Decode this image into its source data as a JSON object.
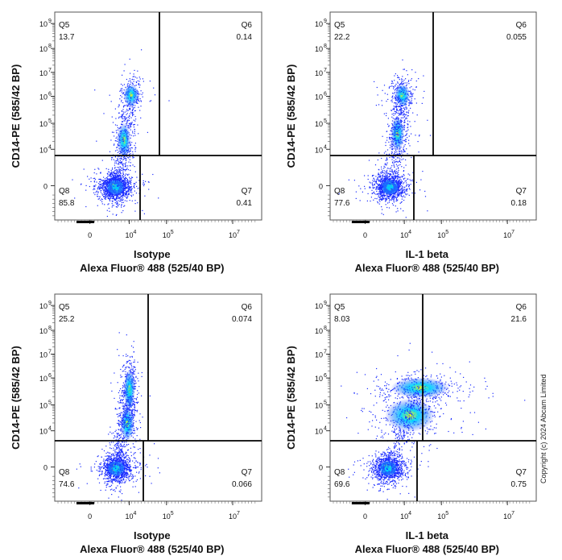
{
  "copyright": "Copyright (c) 2024 Abcam Limited",
  "colors": {
    "density_low": "#1a2cff",
    "density_mid": "#00d8ff",
    "density_high": "#ffee00",
    "density_peak": "#ff2000",
    "gate": "#000000"
  },
  "chart_data": [
    {
      "type": "scatter",
      "panel": "isotype-control",
      "xlabel_line1": "Isotype",
      "xlabel_line2": "Alexa Fluor® 488  (525/40 BP)",
      "ylabel": "CD14-PE (585/42 BP)",
      "x_scale": "biexponential",
      "y_scale": "biexponential",
      "x_ticks": [
        "0",
        "10",
        "10",
        "10"
      ],
      "x_tick_exponents": [
        "",
        "4",
        "5",
        "7"
      ],
      "y_ticks": [
        "0",
        "10",
        "10",
        "10",
        "10",
        "10",
        "10"
      ],
      "y_tick_exponents": [
        "",
        "4",
        "5",
        "6",
        "7",
        "8",
        "9"
      ],
      "quadrants": [
        {
          "name": "Q5",
          "value": "13.7"
        },
        {
          "name": "Q6",
          "value": "0.14"
        },
        {
          "name": "Q8",
          "value": "85.8"
        },
        {
          "name": "Q7",
          "value": "0.41"
        }
      ],
      "populations": [
        {
          "x": 8500,
          "y": 0,
          "share": 0.85
        },
        {
          "x": 17000,
          "y": 35000,
          "share": 0.09
        },
        {
          "x": 30000,
          "y": 1500000,
          "share": 0.06
        }
      ]
    },
    {
      "type": "scatter",
      "panel": "il1beta-stained",
      "xlabel_line1": "IL-1 beta",
      "xlabel_line2": "Alexa Fluor® 488  (525/40 BP)",
      "ylabel": "CD14-PE (585/42 BP)",
      "x_scale": "biexponential",
      "y_scale": "biexponential",
      "x_ticks": [
        "0",
        "10",
        "10",
        "10"
      ],
      "x_tick_exponents": [
        "",
        "4",
        "5",
        "7"
      ],
      "y_ticks": [
        "0",
        "10",
        "10",
        "10",
        "10",
        "10",
        "10"
      ],
      "y_tick_exponents": [
        "",
        "4",
        "5",
        "6",
        "7",
        "8",
        "9"
      ],
      "quadrants": [
        {
          "name": "Q5",
          "value": "22.2"
        },
        {
          "name": "Q6",
          "value": "0.055"
        },
        {
          "name": "Q8",
          "value": "77.6"
        },
        {
          "name": "Q7",
          "value": "0.18"
        }
      ],
      "populations": [
        {
          "x": 8000,
          "y": 0,
          "share": 0.77
        },
        {
          "x": 15000,
          "y": 60000,
          "share": 0.12
        },
        {
          "x": 22000,
          "y": 1500000,
          "share": 0.11
        }
      ]
    },
    {
      "type": "scatter",
      "panel": "isotype-control-2",
      "xlabel_line1": "Isotype",
      "xlabel_line2": "Alexa Fluor® 488  (525/40 BP)",
      "ylabel": "CD14-PE (585/42 BP)",
      "x_scale": "biexponential",
      "y_scale": "biexponential",
      "x_ticks": [
        "0",
        "10",
        "10",
        "10"
      ],
      "x_tick_exponents": [
        "",
        "4",
        "5",
        "7"
      ],
      "y_ticks": [
        "0",
        "10",
        "10",
        "10",
        "10",
        "10",
        "10"
      ],
      "y_tick_exponents": [
        "",
        "4",
        "5",
        "6",
        "7",
        "8",
        "9"
      ],
      "quadrants": [
        {
          "name": "Q5",
          "value": "25.2"
        },
        {
          "name": "Q6",
          "value": "0.074"
        },
        {
          "name": "Q8",
          "value": "74.6"
        },
        {
          "name": "Q7",
          "value": "0.066"
        }
      ],
      "populations": [
        {
          "x": 9000,
          "y": 0,
          "share": 0.74
        },
        {
          "x": 22000,
          "y": 30000,
          "share": 0.08
        },
        {
          "x": 26000,
          "y": 500000,
          "share": 0.18
        }
      ]
    },
    {
      "type": "scatter",
      "panel": "il1beta-stained-2",
      "xlabel_line1": "IL-1 beta",
      "xlabel_line2": "Alexa Fluor® 488  (525/40 BP)",
      "ylabel": "CD14-PE (585/42 BP)",
      "x_scale": "biexponential",
      "y_scale": "biexponential",
      "x_ticks": [
        "0",
        "10",
        "10",
        "10"
      ],
      "x_tick_exponents": [
        "",
        "4",
        "5",
        "7"
      ],
      "y_ticks": [
        "0",
        "10",
        "10",
        "10",
        "10",
        "10",
        "10"
      ],
      "y_tick_exponents": [
        "",
        "4",
        "5",
        "6",
        "7",
        "8",
        "9"
      ],
      "quadrants": [
        {
          "name": "Q5",
          "value": "8.03"
        },
        {
          "name": "Q6",
          "value": "21.6"
        },
        {
          "name": "Q8",
          "value": "69.6"
        },
        {
          "name": "Q7",
          "value": "0.75"
        }
      ],
      "populations": [
        {
          "x": 7000,
          "y": 0,
          "share": 0.69
        },
        {
          "x": 40000,
          "y": 60000,
          "share": 0.14
        },
        {
          "x": 90000,
          "y": 600000,
          "share": 0.17
        }
      ]
    }
  ]
}
